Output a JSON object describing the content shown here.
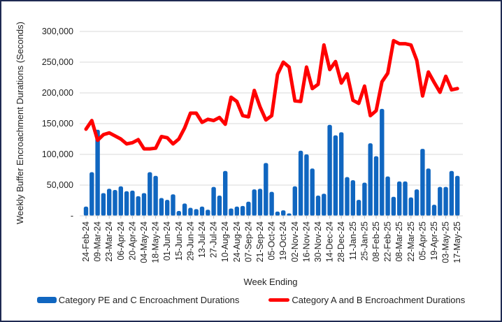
{
  "chart_data": {
    "type": "bar",
    "title": "",
    "xlabel": "Week Ending",
    "ylabel": "Weekly Buffer Encroachment Durations (Seconds)",
    "ylim": [
      0,
      300000
    ],
    "yticks": [
      0,
      50000,
      100000,
      150000,
      200000,
      250000,
      300000
    ],
    "ytick_labels": [
      "-",
      "50,000",
      "100,000",
      "150,000",
      "200,000",
      "250,000",
      "300,000"
    ],
    "grid": true,
    "legend_position": "bottom",
    "x_tick_labels": [
      "24-Feb-24",
      "09-Mar-24",
      "23-Mar-24",
      "06-Apr-24",
      "20-Apr-24",
      "04-May-24",
      "18-May-24",
      "01-Jun-24",
      "15-Jun-24",
      "29-Jun-24",
      "13-Jul-24",
      "27-Jul-24",
      "10-Aug-24",
      "24-Aug-24",
      "07-Sep-24",
      "21-Sep-24",
      "05-Oct-24",
      "19-Oct-24",
      "02-Nov-24",
      "16-Nov-24",
      "30-Nov-24",
      "14-Dec-24",
      "28-Dec-24",
      "11-Jan-25",
      "25-Jan-25",
      "08-Feb-25",
      "22-Feb-25",
      "08-Mar-25",
      "22-Mar-25",
      "05-Apr-25",
      "19-Apr-25",
      "03-May-25",
      "17-May-25"
    ],
    "weeks": 65,
    "series": [
      {
        "name": "Category PE and C Encroachment Durations",
        "type": "bar",
        "color": "#1066c0",
        "values": [
          15000,
          71000,
          140000,
          37000,
          44000,
          42000,
          48000,
          40000,
          41000,
          32000,
          37000,
          71000,
          65000,
          29000,
          26000,
          35000,
          8000,
          20000,
          13000,
          11000,
          15000,
          10000,
          47000,
          33000,
          73000,
          12000,
          15000,
          16000,
          23000,
          43000,
          44000,
          86000,
          39000,
          7000,
          9000,
          4000,
          48000,
          106000,
          100000,
          77000,
          33000,
          36000,
          148000,
          131000,
          136000,
          63000,
          58000,
          26000,
          54000,
          118000,
          97000,
          174000,
          64000,
          31000,
          56000,
          56000,
          30000,
          43000,
          109000,
          77000,
          18000,
          47000,
          47000,
          73000,
          65000
        ]
      },
      {
        "name": "Category A and B Encroachment Durations",
        "type": "line",
        "color": "#ff0000",
        "values": [
          141000,
          155000,
          123000,
          132000,
          135000,
          130000,
          125000,
          117000,
          119000,
          124000,
          109000,
          109000,
          110000,
          129000,
          127000,
          117000,
          125000,
          143000,
          167000,
          167000,
          152000,
          157000,
          155000,
          160000,
          149000,
          193000,
          186000,
          163000,
          161000,
          204000,
          177000,
          156000,
          163000,
          230000,
          250000,
          242000,
          187000,
          186000,
          242000,
          207000,
          214000,
          278000,
          238000,
          251000,
          216000,
          231000,
          188000,
          183000,
          211000,
          163000,
          171000,
          218000,
          232000,
          285000,
          280000,
          280000,
          278000,
          253000,
          195000,
          234000,
          217000,
          201000,
          227000,
          205000,
          207000
        ]
      }
    ]
  }
}
